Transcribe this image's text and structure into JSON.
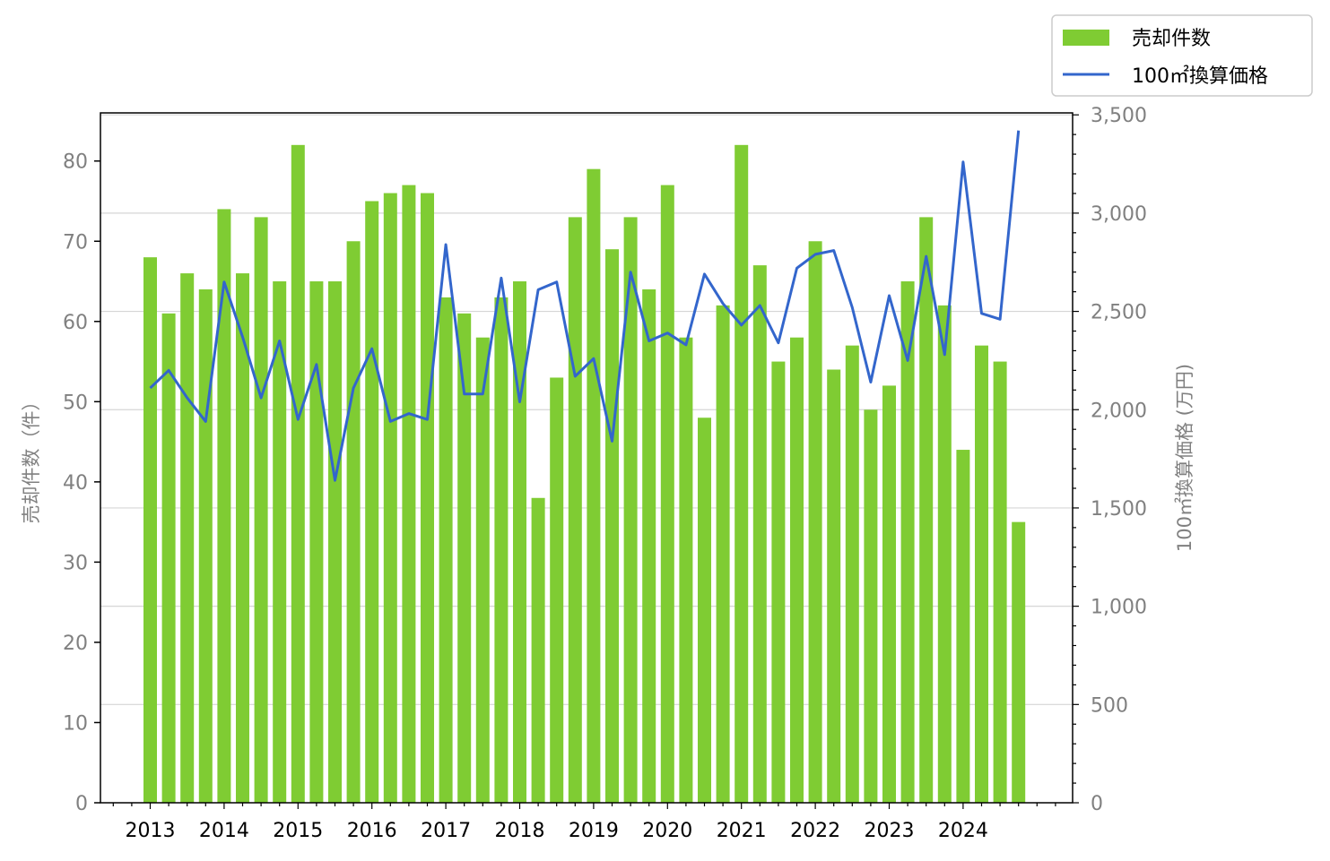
{
  "chart_data": {
    "type": "bar",
    "x_tick_labels": [
      "2013",
      "2014",
      "2015",
      "2016",
      "2017",
      "2018",
      "2019",
      "2020",
      "2021",
      "2022",
      "2023",
      "2024"
    ],
    "periods_per_year": 4,
    "series": [
      {
        "name": "売却件数",
        "type": "bar",
        "axis": "left",
        "color": "#7fcc33",
        "values": [
          68,
          61,
          66,
          64,
          74,
          66,
          73,
          65,
          82,
          65,
          65,
          70,
          75,
          76,
          77,
          76,
          63,
          61,
          58,
          63,
          65,
          38,
          53,
          73,
          79,
          69,
          73,
          64,
          77,
          58,
          48,
          62,
          82,
          67,
          55,
          58,
          70,
          54,
          57,
          49,
          52,
          65,
          73,
          62,
          44,
          57,
          55,
          35
        ]
      },
      {
        "name": "100㎡換算価格",
        "type": "line",
        "axis": "right",
        "color": "#3366cc",
        "values": [
          2110,
          2200,
          2060,
          1940,
          2650,
          2370,
          2060,
          2350,
          1950,
          2230,
          1640,
          2110,
          2310,
          1940,
          1980,
          1950,
          2840,
          2080,
          2080,
          2670,
          2040,
          2610,
          2650,
          2170,
          2260,
          1840,
          2700,
          2350,
          2390,
          2330,
          2690,
          2540,
          2430,
          2530,
          2340,
          2720,
          2790,
          2810,
          2520,
          2140,
          2580,
          2250,
          2780,
          2280,
          3260,
          2490,
          2460,
          3420
        ]
      }
    ],
    "left_axis": {
      "label": "売却件数（件）",
      "ylim": [
        0,
        86
      ],
      "ticks": [
        0,
        10,
        20,
        30,
        40,
        50,
        60,
        70,
        80
      ],
      "tick_labels": [
        "0",
        "10",
        "20",
        "30",
        "40",
        "50",
        "60",
        "70",
        "80"
      ]
    },
    "right_axis": {
      "label": "100㎡換算価格 (万円)",
      "ylim": [
        0,
        3510
      ],
      "ticks": [
        0,
        500,
        1000,
        1500,
        2000,
        2500,
        3000,
        3500
      ],
      "tick_labels": [
        "0",
        "500",
        "1,000",
        "1,500",
        "2,000",
        "2,500",
        "3,000",
        "3,500"
      ]
    },
    "grid": "horizontal, right axis",
    "legend": {
      "position": "top-right, outside",
      "entries": [
        "売却件数",
        "100㎡換算価格"
      ]
    }
  }
}
